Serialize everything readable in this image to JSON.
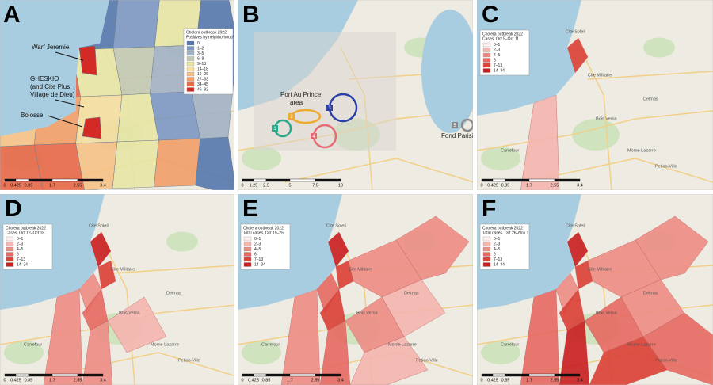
{
  "panels": [
    {
      "letter": "A",
      "legend": {
        "title": "Cholera outbreak 2022",
        "subtitle": "Positives by neighborhood",
        "items": [
          {
            "label": "0",
            "color": "#5677ad"
          },
          {
            "label": "1–2",
            "color": "#7d98c2"
          },
          {
            "label": "3–5",
            "color": "#a3b2c5"
          },
          {
            "label": "6–8",
            "color": "#c3c9b3"
          },
          {
            "label": "9–13",
            "color": "#e9e6a6"
          },
          {
            "label": "14–18",
            "color": "#f5dea0"
          },
          {
            "label": "19–26",
            "color": "#f6c287"
          },
          {
            "label": "27–33",
            "color": "#f29f6b"
          },
          {
            "label": "34–45",
            "color": "#e8694a"
          },
          {
            "label": "46–92",
            "color": "#d42a26"
          }
        ]
      },
      "annotations": [
        "Warf Jeremie",
        "GHESKIO",
        "(and Cite Plus,",
        "Village de Dieu)",
        "Bolosse"
      ],
      "scale": [
        "0",
        "0.425",
        "0.85",
        "1.7",
        "2.55",
        "3.4"
      ]
    },
    {
      "letter": "B",
      "annotations": [
        "Port Au Prince",
        "area",
        "Fond Parisien"
      ],
      "sites": [
        {
          "label": 1,
          "color": "#2aa88a"
        },
        {
          "label": 2,
          "color": "#f0a830"
        },
        {
          "label": 3,
          "color": "#2a3fa8"
        },
        {
          "label": 4,
          "color": "#e46a74"
        },
        {
          "label": 5,
          "color": "#8a8a8a"
        }
      ],
      "scale": [
        "0",
        "1.25",
        "2.5",
        "5",
        "7.5",
        "10"
      ]
    },
    {
      "letter": "C",
      "legend": {
        "title": "Cholera outbreak 2022",
        "subtitle": "Cases, Oct 5–Oct 11",
        "items": [
          {
            "label": "0–1",
            "color": "#fdf0ef"
          },
          {
            "label": "2–3",
            "color": "#f5b5b0"
          },
          {
            "label": "4–5",
            "color": "#ee8d86"
          },
          {
            "label": "6",
            "color": "#e66a62"
          },
          {
            "label": "7–13",
            "color": "#dc4036"
          },
          {
            "label": "14–34",
            "color": "#c81e1e"
          }
        ]
      },
      "scale": [
        "0",
        "0.425",
        "0.85",
        "1.7",
        "2.55",
        "3.4"
      ]
    },
    {
      "letter": "D",
      "legend": {
        "title": "Cholera outbreak 2022",
        "subtitle": "Cases, Oct 12–Oct 18",
        "items": [
          {
            "label": "0–1",
            "color": "#fdf0ef"
          },
          {
            "label": "2–3",
            "color": "#f5b5b0"
          },
          {
            "label": "4–5",
            "color": "#ee8d86"
          },
          {
            "label": "6",
            "color": "#e66a62"
          },
          {
            "label": "7–13",
            "color": "#dc4036"
          },
          {
            "label": "14–34",
            "color": "#c81e1e"
          }
        ]
      },
      "scale": [
        "0",
        "0.425",
        "0.85",
        "1.7",
        "2.55",
        "3.4"
      ]
    },
    {
      "letter": "E",
      "legend": {
        "title": "Cholera outbreak 2022",
        "subtitle": "Total cases, Oct 19–25",
        "items": [
          {
            "label": "0–1",
            "color": "#fdf0ef"
          },
          {
            "label": "2–3",
            "color": "#f5b5b0"
          },
          {
            "label": "4–5",
            "color": "#ee8d86"
          },
          {
            "label": "6",
            "color": "#e66a62"
          },
          {
            "label": "7–13",
            "color": "#dc4036"
          },
          {
            "label": "14–34",
            "color": "#c81e1e"
          }
        ]
      },
      "scale": [
        "0",
        "0.425",
        "0.85",
        "1.7",
        "2.55",
        "3.4"
      ]
    },
    {
      "letter": "F",
      "legend": {
        "title": "Cholera outbreak 2022",
        "subtitle": "Total cases, Oct 26–Nov 1",
        "items": [
          {
            "label": "0–1",
            "color": "#fdf0ef"
          },
          {
            "label": "2–3",
            "color": "#f5b5b0"
          },
          {
            "label": "4–5",
            "color": "#ee8d86"
          },
          {
            "label": "6",
            "color": "#e66a62"
          },
          {
            "label": "7–13",
            "color": "#dc4036"
          },
          {
            "label": "14–34",
            "color": "#c81e1e"
          }
        ]
      },
      "scale": [
        "0",
        "0.425",
        "0.85",
        "1.7",
        "2.55",
        "3.4"
      ]
    }
  ],
  "places": [
    "Cite Soleil",
    "Cite Militaire",
    "Delmas",
    "Petion-Ville",
    "Bois Verna",
    "Carrefour",
    "Morne Lazarre"
  ]
}
